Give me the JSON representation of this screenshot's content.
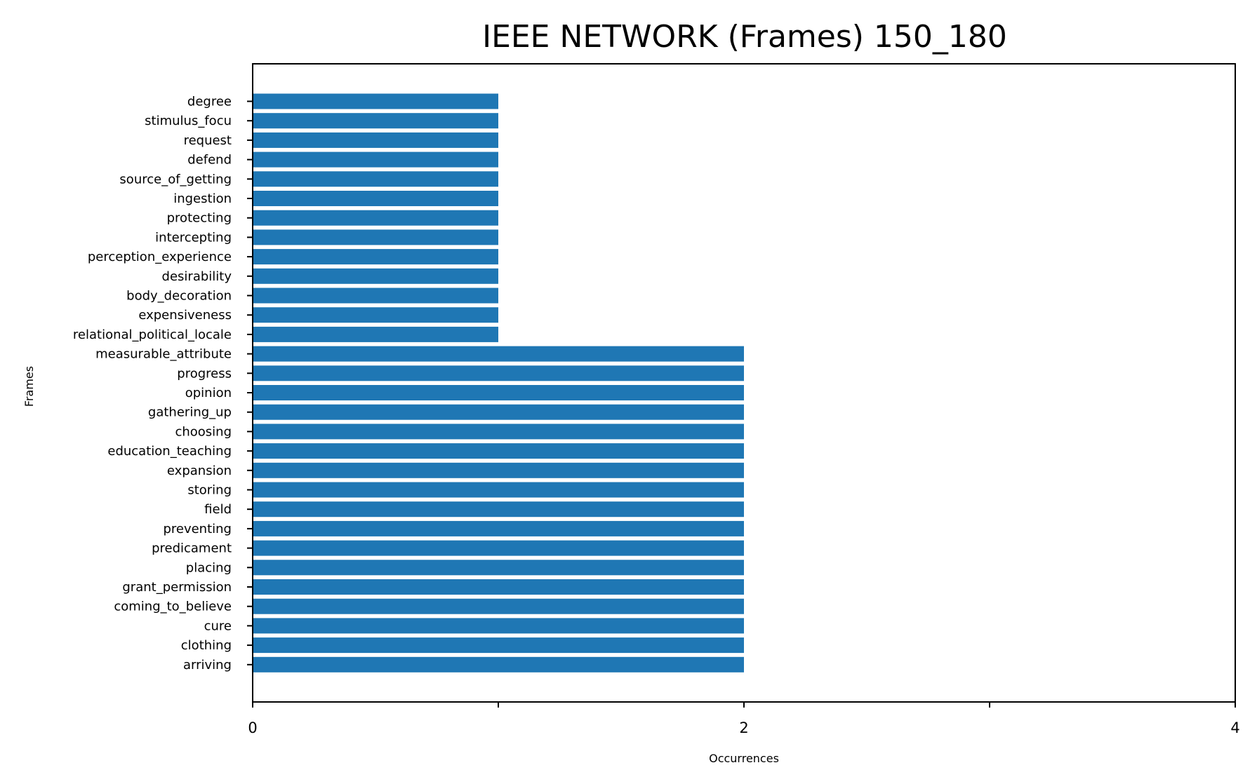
{
  "chart_data": {
    "type": "bar",
    "orientation": "horizontal",
    "title": "IEEE NETWORK (Frames) 150_180",
    "xlabel": "Occurrences",
    "ylabel": "Frames",
    "xlim": [
      0,
      4
    ],
    "xticks": [
      0,
      1,
      2,
      3,
      4
    ],
    "xtick_labels": [
      "0",
      "",
      "2",
      "",
      "4"
    ],
    "bar_color": "#1f77b4",
    "grid": false,
    "legend": "none",
    "categories": [
      "degree",
      "stimulus_focu",
      "request",
      "defend",
      "source_of_getting",
      "ingestion",
      "protecting",
      "intercepting",
      "perception_experience",
      "desirability",
      "body_decoration",
      "expensiveness",
      "relational_political_locale",
      "measurable_attribute",
      "progress",
      "opinion",
      "gathering_up",
      "choosing",
      "education_teaching",
      "expansion",
      "storing",
      "field",
      "preventing",
      "predicament",
      "placing",
      "grant_permission",
      "coming_to_believe",
      "cure",
      "clothing",
      "arriving"
    ],
    "values": [
      1,
      1,
      1,
      1,
      1,
      1,
      1,
      1,
      1,
      1,
      1,
      1,
      1,
      2,
      2,
      2,
      2,
      2,
      2,
      2,
      2,
      2,
      2,
      2,
      2,
      2,
      2,
      2,
      2,
      2
    ]
  }
}
